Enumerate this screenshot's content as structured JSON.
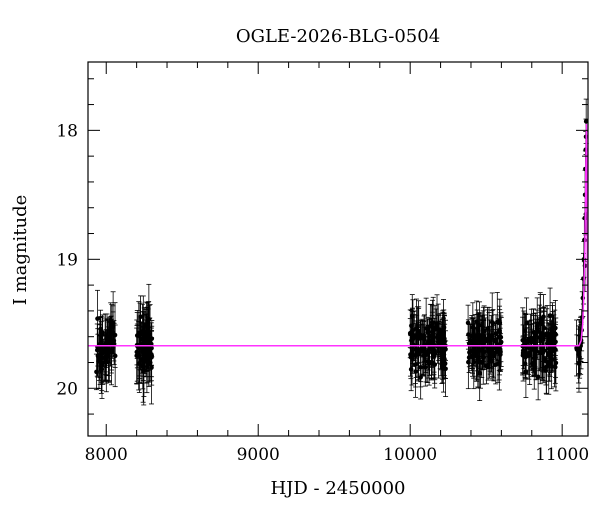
{
  "chart_data": {
    "type": "scatter",
    "title": "OGLE-2026-BLG-0504",
    "xlabel": "HJD - 2450000",
    "ylabel": "I magnitude",
    "xlim": [
      7880,
      11170
    ],
    "ylim": [
      20.37,
      17.47
    ],
    "y_inverted": true,
    "grid": false,
    "x_ticks": {
      "major": [
        8000,
        9000,
        10000,
        11000
      ],
      "major_labels": [
        "8000",
        "9000",
        "10000",
        "11000"
      ],
      "minor_step": 200
    },
    "y_ticks": {
      "major": [
        18,
        19,
        20
      ],
      "major_labels": [
        "18",
        "19",
        "20"
      ],
      "minor_step": 0.2
    },
    "colors": {
      "points": "#000000",
      "error_bars": "#000000",
      "model": "#ff33ff",
      "frame": "#000000"
    },
    "baseline_magnitude": 19.67,
    "series": [
      {
        "kind": "observations",
        "segments": [
          {
            "x_range": [
              7930,
              8060
            ],
            "mag_center": 19.67,
            "mag_spread": 0.28,
            "err_median": 0.17,
            "n": 60
          },
          {
            "x_range": [
              8200,
              8300
            ],
            "mag_center": 19.67,
            "mag_spread": 0.3,
            "err_median": 0.19,
            "n": 70
          },
          {
            "x_range": [
              10000,
              10240
            ],
            "mag_center": 19.67,
            "mag_spread": 0.28,
            "err_median": 0.17,
            "n": 120
          },
          {
            "x_range": [
              10380,
              10600
            ],
            "mag_center": 19.67,
            "mag_spread": 0.26,
            "err_median": 0.16,
            "n": 110
          },
          {
            "x_range": [
              10740,
              10960
            ],
            "mag_center": 19.67,
            "mag_spread": 0.28,
            "err_median": 0.17,
            "n": 110
          },
          {
            "x_range": [
              11090,
              11125
            ],
            "mag_center": 19.7,
            "mag_spread": 0.22,
            "err_median": 0.15,
            "n": 15
          }
        ],
        "rise_points": [
          {
            "x": 11128,
            "y": 19.55
          },
          {
            "x": 11132,
            "y": 19.45
          },
          {
            "x": 11136,
            "y": 19.3
          },
          {
            "x": 11140,
            "y": 19.15
          },
          {
            "x": 11143,
            "y": 19.0
          },
          {
            "x": 11146,
            "y": 18.85
          },
          {
            "x": 11149,
            "y": 18.68
          },
          {
            "x": 11151,
            "y": 18.5
          },
          {
            "x": 11153,
            "y": 18.3
          },
          {
            "x": 11155,
            "y": 18.15
          },
          {
            "x": 11157,
            "y": 18.05
          },
          {
            "x": 11158,
            "y": 17.93
          },
          {
            "x": 11156,
            "y": 18.65
          },
          {
            "x": 11150,
            "y": 19.05
          }
        ]
      },
      {
        "kind": "model",
        "points": [
          {
            "x": 7880,
            "y": 19.67
          },
          {
            "x": 11110,
            "y": 19.67
          },
          {
            "x": 11125,
            "y": 19.63
          },
          {
            "x": 11135,
            "y": 19.5
          },
          {
            "x": 11142,
            "y": 19.3
          },
          {
            "x": 11148,
            "y": 19.0
          },
          {
            "x": 11153,
            "y": 18.6
          },
          {
            "x": 11157,
            "y": 18.2
          },
          {
            "x": 11160,
            "y": 17.95
          },
          {
            "x": 11163,
            "y": 18.4
          },
          {
            "x": 11166,
            "y": 19.2
          },
          {
            "x": 11170,
            "y": 19.6
          }
        ]
      }
    ]
  }
}
